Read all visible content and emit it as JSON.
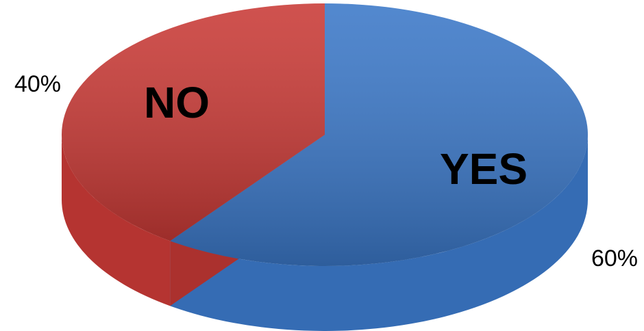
{
  "chart_data": {
    "type": "pie",
    "categories": [
      "YES",
      "NO"
    ],
    "values": [
      60,
      40
    ],
    "value_labels": [
      "60%",
      "40%"
    ],
    "colors": [
      "#3b78c8",
      "#c93a36"
    ]
  }
}
